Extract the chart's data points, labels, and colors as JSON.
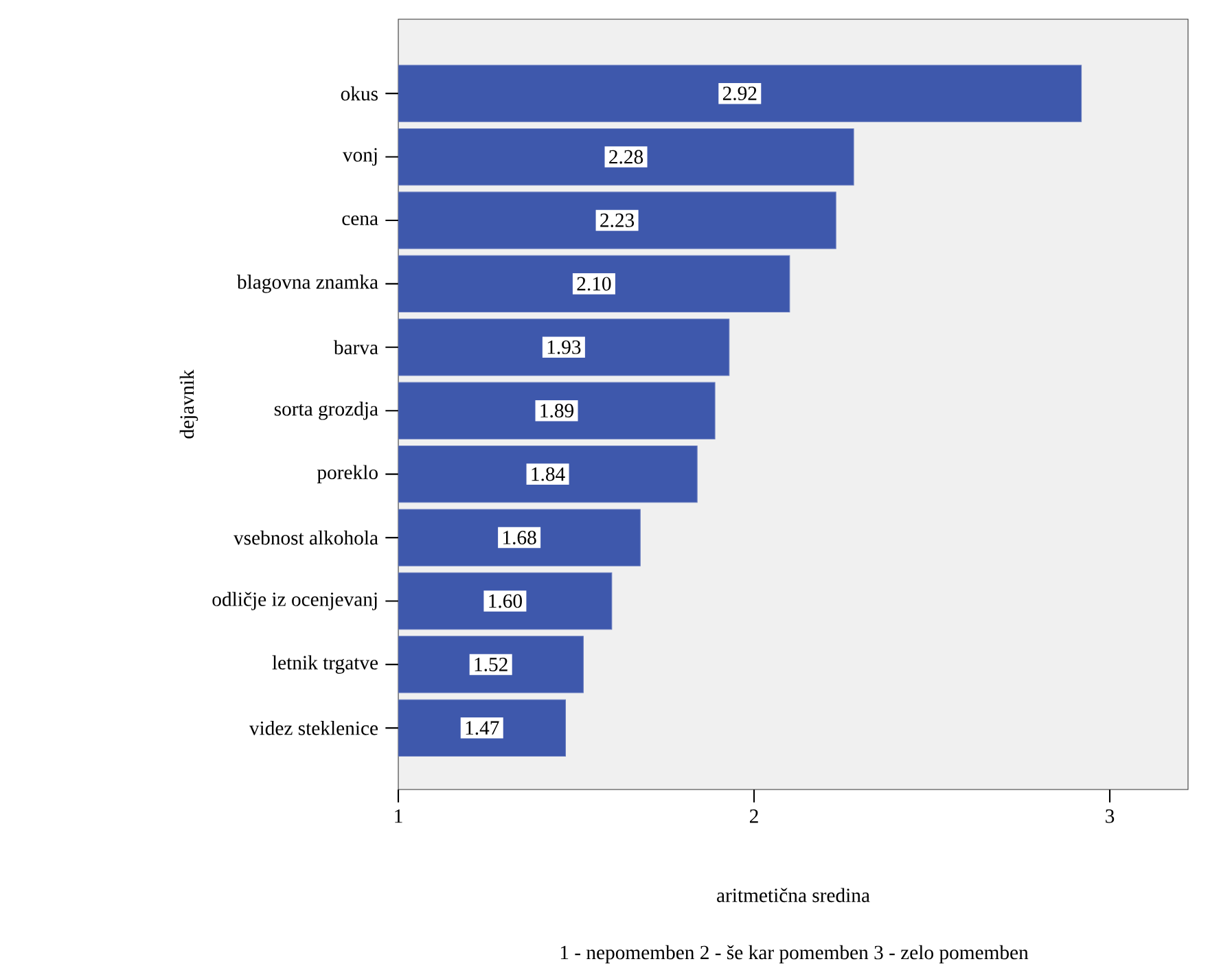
{
  "chart_data": {
    "type": "bar",
    "orientation": "horizontal",
    "categories": [
      "okus",
      "vonj",
      "cena",
      "blagovna znamka",
      "barva",
      "sorta grozdja",
      "poreklo",
      "vsebnost alkohola",
      "odličje iz ocenjevanj",
      "letnik trgatve",
      "videz steklenice"
    ],
    "values": [
      2.92,
      2.28,
      2.23,
      2.1,
      1.93,
      1.89,
      1.84,
      1.68,
      1.6,
      1.52,
      1.47
    ],
    "value_labels": [
      "2.92",
      "2.28",
      "2.23",
      "2.10",
      "1.93",
      "1.89",
      "1.84",
      "1.68",
      "1.60",
      "1.52",
      "1.47"
    ],
    "color": "#3e58ac",
    "xlim": [
      1,
      3.22
    ],
    "xticks": [
      1,
      2,
      3
    ],
    "xlabel": "aritmetična sredina",
    "ylabel": "dejavnik",
    "annotations": [
      "1 - nepomemben   2 - še kar pomemben   3 - zelo pomemben"
    ],
    "grid": false
  }
}
